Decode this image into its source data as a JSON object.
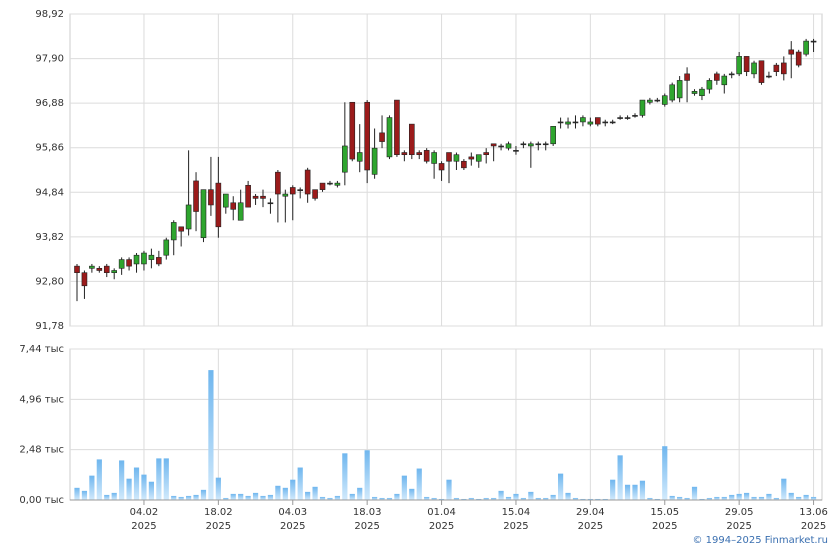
{
  "chart_data": [
    {
      "type": "candlestick",
      "up_color": "#2ea52e",
      "down_color": "#9b1b1b",
      "grid": true,
      "ylim": [
        91.78,
        98.92
      ],
      "yticks": [
        {
          "value": 91.78,
          "label": "91,78"
        },
        {
          "value": 92.8,
          "label": "92,80"
        },
        {
          "value": 93.82,
          "label": "93,82"
        },
        {
          "value": 94.84,
          "label": "94,84"
        },
        {
          "value": 95.86,
          "label": "95,86"
        },
        {
          "value": 96.88,
          "label": "96,88"
        },
        {
          "value": 97.9,
          "label": "97,90"
        },
        {
          "value": 98.92,
          "label": "98,92"
        }
      ],
      "open": [
        93.15,
        93.0,
        93.1,
        93.1,
        93.15,
        93.0,
        93.1,
        93.3,
        93.2,
        93.2,
        93.3,
        93.35,
        93.4,
        93.75,
        94.05,
        94.0,
        95.1,
        93.8,
        94.9,
        95.05,
        94.5,
        94.6,
        94.2,
        95.0,
        94.75,
        94.75,
        94.6,
        95.3,
        94.75,
        94.95,
        94.9,
        95.35,
        94.9,
        95.05,
        95.05,
        95.0,
        95.3,
        96.9,
        95.55,
        96.9,
        95.25,
        96.2,
        95.65,
        96.95,
        95.75,
        96.4,
        95.75,
        95.8,
        95.5,
        95.5,
        95.75,
        95.55,
        95.55,
        95.65,
        95.55,
        95.75,
        95.95,
        95.9,
        95.85,
        95.8,
        95.95,
        95.9,
        95.95,
        95.95,
        95.95,
        96.45,
        96.4,
        96.45,
        96.45,
        96.4,
        96.55,
        96.45,
        96.45,
        96.55,
        96.55,
        96.6,
        96.6,
        96.9,
        96.95,
        96.85,
        96.95,
        97.0,
        97.55,
        97.1,
        97.05,
        97.2,
        97.55,
        97.3,
        97.55,
        97.55,
        97.95,
        97.55,
        97.85,
        97.5,
        97.75,
        97.8,
        98.1,
        98.05,
        98.0,
        98.3
      ],
      "high": [
        93.2,
        93.05,
        93.2,
        93.15,
        93.2,
        93.1,
        93.35,
        93.35,
        93.45,
        93.5,
        93.55,
        93.5,
        93.8,
        94.2,
        94.05,
        95.8,
        95.3,
        94.9,
        95.65,
        95.65,
        94.8,
        94.75,
        94.9,
        95.1,
        94.8,
        94.9,
        94.7,
        95.35,
        94.9,
        95.0,
        94.95,
        95.4,
        94.9,
        95.05,
        95.1,
        95.1,
        96.9,
        96.9,
        96.4,
        96.95,
        96.3,
        96.6,
        96.6,
        96.95,
        95.8,
        96.4,
        95.8,
        95.85,
        95.8,
        95.55,
        95.75,
        95.75,
        95.6,
        95.75,
        95.7,
        95.85,
        95.95,
        95.95,
        96.0,
        95.9,
        96.0,
        96.0,
        96.0,
        96.0,
        96.35,
        96.55,
        96.55,
        96.6,
        96.6,
        96.55,
        96.55,
        96.5,
        96.5,
        96.6,
        96.6,
        96.65,
        96.95,
        97.0,
        97.0,
        97.1,
        97.35,
        97.5,
        97.7,
        97.2,
        97.25,
        97.45,
        97.6,
        97.55,
        97.6,
        98.05,
        97.95,
        97.85,
        97.85,
        97.6,
        97.8,
        97.95,
        98.3,
        98.1,
        98.35,
        98.35
      ],
      "low": [
        92.35,
        92.4,
        93.0,
        93.0,
        92.9,
        92.85,
        92.95,
        93.05,
        93.0,
        93.05,
        93.1,
        93.15,
        93.3,
        93.4,
        93.6,
        93.85,
        93.95,
        93.7,
        94.3,
        93.8,
        94.35,
        94.2,
        94.2,
        94.5,
        94.55,
        94.5,
        94.35,
        94.15,
        94.15,
        94.2,
        94.7,
        94.6,
        94.65,
        94.85,
        95.0,
        94.95,
        95.0,
        95.55,
        95.3,
        95.05,
        95.15,
        95.85,
        95.6,
        95.65,
        95.55,
        95.6,
        95.6,
        95.5,
        95.15,
        95.1,
        95.05,
        95.35,
        95.35,
        95.45,
        95.4,
        95.5,
        95.55,
        95.8,
        95.8,
        95.7,
        95.85,
        95.4,
        95.8,
        95.8,
        95.9,
        96.3,
        96.3,
        96.3,
        96.35,
        96.35,
        96.35,
        96.35,
        96.4,
        96.5,
        96.5,
        96.55,
        96.55,
        96.85,
        96.9,
        96.8,
        96.9,
        96.9,
        96.9,
        97.05,
        96.95,
        97.1,
        97.3,
        97.1,
        97.45,
        97.5,
        97.5,
        97.45,
        97.3,
        97.45,
        97.5,
        97.4,
        97.45,
        97.7,
        97.95,
        98.05
      ],
      "close": [
        93.0,
        92.7,
        93.15,
        93.05,
        93.0,
        93.05,
        93.3,
        93.15,
        93.4,
        93.45,
        93.4,
        93.2,
        93.75,
        94.15,
        93.95,
        94.55,
        94.4,
        94.9,
        94.55,
        94.05,
        94.8,
        94.45,
        94.6,
        94.5,
        94.7,
        94.7,
        94.6,
        94.8,
        94.8,
        94.8,
        94.9,
        94.8,
        94.7,
        94.9,
        95.05,
        95.05,
        95.9,
        95.6,
        95.75,
        95.35,
        95.85,
        96.0,
        96.55,
        95.7,
        95.7,
        95.7,
        95.7,
        95.55,
        95.75,
        95.35,
        95.55,
        95.7,
        95.4,
        95.6,
        95.7,
        95.7,
        95.9,
        95.9,
        95.95,
        95.8,
        95.95,
        95.95,
        95.95,
        95.95,
        96.35,
        96.45,
        96.45,
        96.45,
        96.55,
        96.45,
        96.4,
        96.45,
        96.45,
        96.55,
        96.55,
        96.6,
        96.95,
        96.95,
        96.95,
        97.05,
        97.3,
        97.4,
        97.4,
        97.15,
        97.2,
        97.4,
        97.4,
        97.5,
        97.55,
        97.95,
        97.6,
        97.8,
        97.35,
        97.5,
        97.6,
        97.55,
        98.0,
        97.75,
        98.3,
        98.3
      ]
    },
    {
      "type": "bar",
      "color": "#8ec8f2",
      "grid": true,
      "ylim": [
        0,
        7.44
      ],
      "yticks": [
        {
          "value": 0,
          "label": "0,00 тыс"
        },
        {
          "value": 2.48,
          "label": "2,48 тыс"
        },
        {
          "value": 4.96,
          "label": "4,96 тыс"
        },
        {
          "value": 7.44,
          "label": "7,44 тыс"
        }
      ],
      "categories": [
        null,
        null,
        null,
        null,
        null,
        null,
        null,
        null,
        null,
        "04.02\n2025",
        null,
        null,
        null,
        null,
        null,
        null,
        null,
        null,
        null,
        "18.02\n2025",
        null,
        null,
        null,
        null,
        null,
        null,
        null,
        null,
        null,
        "04.03\n2025",
        null,
        null,
        null,
        null,
        null,
        null,
        null,
        null,
        null,
        "18.03\n2025",
        null,
        null,
        null,
        null,
        null,
        null,
        null,
        null,
        null,
        "01.04\n2025",
        null,
        null,
        null,
        null,
        null,
        null,
        null,
        null,
        null,
        "15.04\n2025",
        null,
        null,
        null,
        null,
        null,
        null,
        null,
        null,
        null,
        "29.04\n2025",
        null,
        null,
        null,
        null,
        null,
        null,
        null,
        null,
        null,
        "15.05\n2025",
        null,
        null,
        null,
        null,
        null,
        null,
        null,
        null,
        null,
        "29.05\n2025",
        null,
        null,
        null,
        null,
        null,
        null,
        null,
        null,
        null,
        "13.06\n2025"
      ],
      "values": [
        0.6,
        0.45,
        1.2,
        2.0,
        0.25,
        0.35,
        1.95,
        1.05,
        1.6,
        1.25,
        0.9,
        2.05,
        2.05,
        0.2,
        0.15,
        0.2,
        0.25,
        0.5,
        6.4,
        1.1,
        0.1,
        0.3,
        0.3,
        0.2,
        0.35,
        0.2,
        0.25,
        0.7,
        0.6,
        1.0,
        1.6,
        0.4,
        0.65,
        0.15,
        0.1,
        0.2,
        2.3,
        0.3,
        0.6,
        2.45,
        0.15,
        0.1,
        0.1,
        0.3,
        1.2,
        0.55,
        1.55,
        0.15,
        0.1,
        0.05,
        1.0,
        0.1,
        0.05,
        0.1,
        0.05,
        0.1,
        0.1,
        0.45,
        0.15,
        0.3,
        0.1,
        0.4,
        0.1,
        0.1,
        0.25,
        1.3,
        0.35,
        0.1,
        0.05,
        0.05,
        0.05,
        0.05,
        1.0,
        2.2,
        0.75,
        0.75,
        0.95,
        0.1,
        0.05,
        2.65,
        0.2,
        0.15,
        0.1,
        0.65,
        0.05,
        0.1,
        0.15,
        0.15,
        0.25,
        0.3,
        0.35,
        0.15,
        0.15,
        0.3,
        0.1,
        1.05,
        0.35,
        0.15,
        0.25,
        0.15
      ]
    }
  ],
  "credit": "© 1994–2025 Finmarket.ru"
}
